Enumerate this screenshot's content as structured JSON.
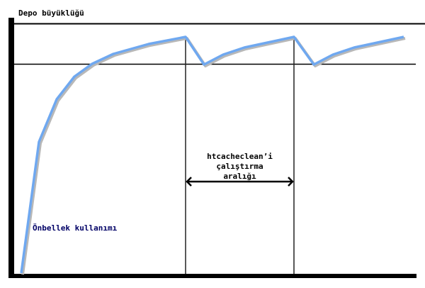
{
  "diagram": {
    "y_label": "Depo büyüklüğü",
    "curve_label": "Önbellek kullanımı",
    "interval_label": [
      "htcacheclean’i",
      "çalıştırma",
      "aralığı"
    ],
    "colors": {
      "curve": "#6fa8f0",
      "shadow": "#b8b8b8",
      "axis": "#000000",
      "curve_label": "#000066"
    }
  }
}
